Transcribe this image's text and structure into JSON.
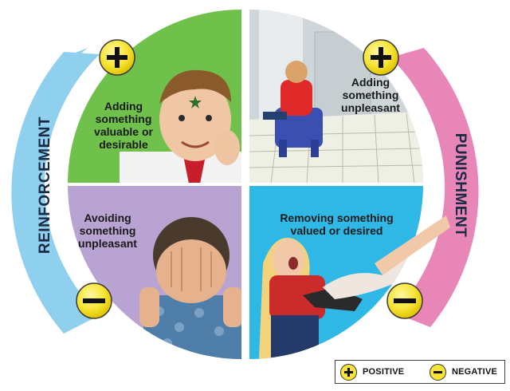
{
  "sides": {
    "left": "REINFORCEMENT",
    "right": "PUNISHMENT"
  },
  "quadrants": [
    {
      "id": "positive-reinforcement",
      "text": "Adding\nsomething\nvaluable or\ndesirable",
      "sign": "+",
      "photo": "boy-with-star-sticker"
    },
    {
      "id": "positive-punishment",
      "text": "Adding\nsomething\nunpleasant",
      "sign": "+",
      "photo": "child-on-time-out-chair"
    },
    {
      "id": "negative-reinforcement",
      "text": "Avoiding\nsomething\nunpleasant",
      "sign": "−",
      "photo": "boy-covering-face"
    },
    {
      "id": "negative-punishment",
      "text": "Removing something\nvalued or desired",
      "sign": "−",
      "photo": "girl-toy-taken-away"
    }
  ],
  "legend": {
    "positive_label": "POSITIVE",
    "negative_label": "NEGATIVE"
  },
  "colors": {
    "green": "#6fc14b",
    "purple": "#b9a3d3",
    "blue_quadrant": "#2fb8e6",
    "reinforcement_band": "#8fd0ee",
    "punishment_band": "#e986b8",
    "badge_yellow": "#f7e536"
  },
  "icons": [
    "plus-icon",
    "minus-icon"
  ]
}
